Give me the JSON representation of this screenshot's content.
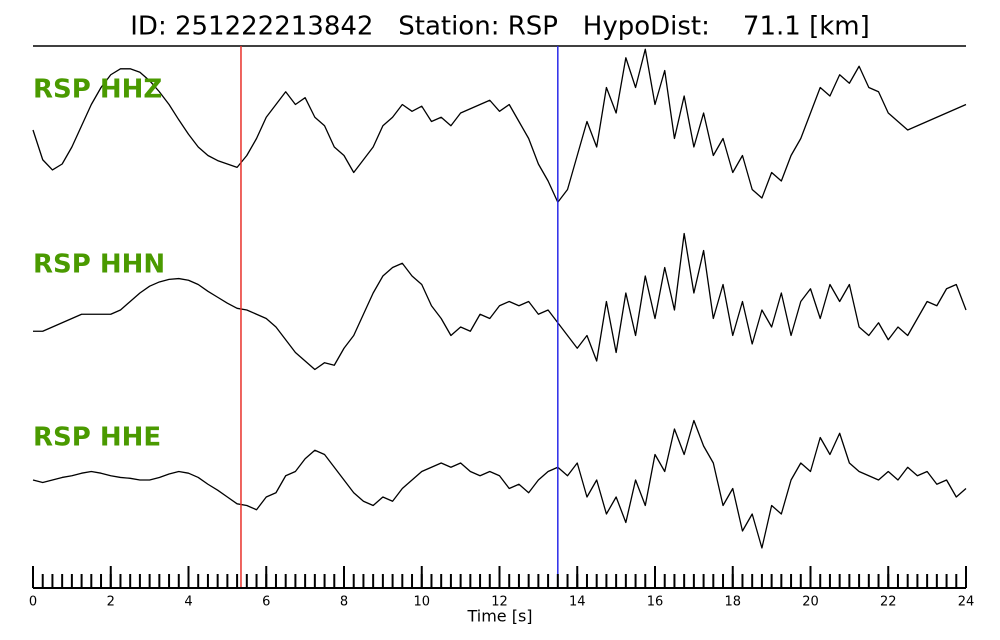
{
  "chart_data": {
    "type": "seismogram",
    "title": "ID: 251222213842   Station: RSP   HypoDist:    71.1 [km]",
    "xlabel": "Time [s]",
    "xlim": [
      0,
      24
    ],
    "xticks": [
      0,
      2,
      4,
      6,
      8,
      10,
      12,
      14,
      16,
      18,
      20,
      22,
      24
    ],
    "xminorticks": [
      0,
      0.25,
      0.5,
      0.75,
      1,
      1.25,
      1.5,
      1.75,
      2,
      2.25,
      2.5,
      2.75,
      3,
      3.25,
      3.5,
      3.75,
      4,
      4.25,
      4.5,
      4.75,
      5,
      5.25,
      5.5,
      5.75,
      6,
      6.25,
      6.5,
      6.75,
      7,
      7.25,
      7.5,
      7.75,
      8,
      8.25,
      8.5,
      8.75,
      9,
      9.25,
      9.5,
      9.75,
      10,
      10.25,
      10.5,
      10.75,
      11,
      11.25,
      11.5,
      11.75,
      12,
      12.25,
      12.5,
      12.75,
      13,
      13.25,
      13.5,
      13.75,
      14,
      14.25,
      14.5,
      14.75,
      15,
      15.25,
      15.5,
      15.75,
      16,
      16.25,
      16.5,
      16.75,
      17,
      17.25,
      17.5,
      17.75,
      18,
      18.25,
      18.5,
      18.75,
      19,
      19.25,
      19.5,
      19.75,
      20,
      20.25,
      20.5,
      20.75,
      21,
      21.25,
      21.5,
      21.75,
      22,
      22.25,
      22.5,
      22.75,
      23,
      23.25,
      23.5,
      23.75,
      24
    ],
    "x": [
      0,
      0.25,
      0.5,
      0.75,
      1,
      1.25,
      1.5,
      1.75,
      2,
      2.25,
      2.5,
      2.75,
      3,
      3.25,
      3.5,
      3.75,
      4,
      4.25,
      4.5,
      4.75,
      5,
      5.25,
      5.5,
      5.75,
      6,
      6.25,
      6.5,
      6.75,
      7,
      7.25,
      7.5,
      7.75,
      8,
      8.25,
      8.5,
      8.75,
      9,
      9.25,
      9.5,
      9.75,
      10,
      10.25,
      10.5,
      10.75,
      11,
      11.25,
      11.5,
      11.75,
      12,
      12.25,
      12.5,
      12.75,
      13,
      13.25,
      13.5,
      13.75,
      14,
      14.25,
      14.5,
      14.75,
      15,
      15.25,
      15.5,
      15.75,
      16,
      16.25,
      16.5,
      16.75,
      17,
      17.25,
      17.5,
      17.75,
      18,
      18.25,
      18.5,
      18.75,
      19,
      19.25,
      19.5,
      19.75,
      20,
      20.25,
      20.5,
      20.75,
      21,
      21.25,
      21.5,
      21.75,
      22,
      22.25,
      22.5,
      22.75,
      23,
      23.25,
      23.5,
      23.75,
      24
    ],
    "ylim": [
      -1,
      1
    ],
    "label_color": "#4a9a00",
    "markers": [
      {
        "x": 5.35,
        "color": "#e8302a"
      },
      {
        "x": 13.5,
        "color": "#2a2ae8"
      }
    ],
    "series": [
      {
        "name": "RSP HHZ",
        "color": "#000000",
        "values": [
          0.0,
          -0.35,
          -0.47,
          -0.4,
          -0.2,
          0.05,
          0.3,
          0.5,
          0.65,
          0.72,
          0.72,
          0.68,
          0.58,
          0.45,
          0.3,
          0.12,
          -0.05,
          -0.2,
          -0.3,
          -0.36,
          -0.4,
          -0.44,
          -0.3,
          -0.1,
          0.15,
          0.3,
          0.45,
          0.3,
          0.38,
          0.15,
          0.05,
          -0.2,
          -0.3,
          -0.5,
          -0.35,
          -0.2,
          0.05,
          0.15,
          0.3,
          0.22,
          0.28,
          0.1,
          0.15,
          0.05,
          0.2,
          0.25,
          0.3,
          0.35,
          0.22,
          0.3,
          0.1,
          -0.1,
          -0.4,
          -0.6,
          -0.85,
          -0.7,
          -0.3,
          0.1,
          -0.2,
          0.5,
          0.2,
          0.85,
          0.5,
          0.95,
          0.3,
          0.7,
          -0.1,
          0.4,
          -0.2,
          0.2,
          -0.3,
          -0.1,
          -0.5,
          -0.3,
          -0.7,
          -0.8,
          -0.5,
          -0.6,
          -0.3,
          -0.1,
          0.2,
          0.5,
          0.4,
          0.65,
          0.55,
          0.75,
          0.5,
          0.45,
          0.2,
          0.1,
          0.0,
          0.05,
          0.1,
          0.15,
          0.2,
          0.25,
          0.3
        ]
      },
      {
        "name": "RSP HHN",
        "color": "#000000",
        "values": [
          -0.25,
          -0.25,
          -0.2,
          -0.15,
          -0.1,
          -0.05,
          -0.05,
          -0.05,
          -0.05,
          0.0,
          0.1,
          0.2,
          0.28,
          0.33,
          0.36,
          0.37,
          0.35,
          0.3,
          0.22,
          0.15,
          0.08,
          0.02,
          0.0,
          -0.05,
          -0.1,
          -0.2,
          -0.35,
          -0.5,
          -0.6,
          -0.7,
          -0.62,
          -0.65,
          -0.45,
          -0.3,
          -0.05,
          0.2,
          0.4,
          0.5,
          0.55,
          0.4,
          0.3,
          0.05,
          -0.1,
          -0.3,
          -0.2,
          -0.25,
          -0.05,
          -0.1,
          0.05,
          0.1,
          0.05,
          0.1,
          -0.05,
          0.0,
          -0.15,
          -0.3,
          -0.45,
          -0.3,
          -0.6,
          0.1,
          -0.5,
          0.2,
          -0.3,
          0.4,
          -0.1,
          0.5,
          0.0,
          0.9,
          0.2,
          0.7,
          -0.1,
          0.3,
          -0.3,
          0.1,
          -0.4,
          0.0,
          -0.2,
          0.2,
          -0.3,
          0.1,
          0.25,
          -0.1,
          0.3,
          0.1,
          0.3,
          -0.2,
          -0.3,
          -0.15,
          -0.35,
          -0.2,
          -0.3,
          -0.1,
          0.1,
          0.05,
          0.25,
          0.3,
          0.0
        ]
      },
      {
        "name": "RSP HHE",
        "color": "#000000",
        "values": [
          0.0,
          -0.03,
          0.0,
          0.03,
          0.05,
          0.08,
          0.1,
          0.08,
          0.05,
          0.03,
          0.02,
          0.0,
          0.0,
          0.03,
          0.07,
          0.1,
          0.08,
          0.03,
          -0.05,
          -0.12,
          -0.2,
          -0.28,
          -0.3,
          -0.35,
          -0.2,
          -0.15,
          0.05,
          0.1,
          0.25,
          0.35,
          0.3,
          0.15,
          0.0,
          -0.15,
          -0.25,
          -0.3,
          -0.2,
          -0.25,
          -0.1,
          0.0,
          0.1,
          0.15,
          0.2,
          0.15,
          0.2,
          0.1,
          0.05,
          0.1,
          0.05,
          -0.1,
          -0.05,
          -0.15,
          0.0,
          0.1,
          0.15,
          0.05,
          0.2,
          -0.2,
          0.0,
          -0.4,
          -0.2,
          -0.5,
          0.0,
          -0.3,
          0.3,
          0.1,
          0.6,
          0.3,
          0.7,
          0.4,
          0.2,
          -0.3,
          -0.1,
          -0.6,
          -0.4,
          -0.8,
          -0.3,
          -0.4,
          0.0,
          0.2,
          0.1,
          0.5,
          0.3,
          0.55,
          0.2,
          0.1,
          0.05,
          0.0,
          0.1,
          0.0,
          0.15,
          0.05,
          0.1,
          -0.05,
          0.0,
          -0.2,
          -0.1
        ]
      }
    ]
  }
}
